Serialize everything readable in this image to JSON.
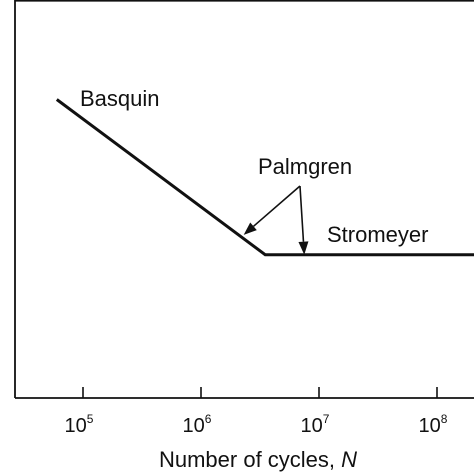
{
  "chart_data": {
    "type": "line",
    "title": "",
    "xlabel_prefix": "Number of cycles, ",
    "xlabel_var": "N",
    "ylabel": "",
    "x_scale": "log",
    "xlim": [
      10000,
      300000000
    ],
    "ylim": [
      0,
      100
    ],
    "grid": false,
    "ticks": [
      {
        "base": "10",
        "exp": "5",
        "value": 100000
      },
      {
        "base": "10",
        "exp": "6",
        "value": 1000000
      },
      {
        "base": "10",
        "exp": "7",
        "value": 10000000
      },
      {
        "base": "10",
        "exp": "8",
        "value": 100000000
      }
    ],
    "series": [
      {
        "points": [
          {
            "x": 60000,
            "y": 75
          },
          {
            "x": 3500000,
            "y": 36
          },
          {
            "x": 300000000,
            "y": 36
          }
        ]
      }
    ],
    "annotations": {
      "basquin": "Basquin",
      "palmgren": "Palmgren",
      "stromeyer": "Stromeyer"
    },
    "arrow_targets": [
      {
        "x": 2300000,
        "y": 41
      },
      {
        "x": 7500000,
        "y": 36
      }
    ]
  }
}
